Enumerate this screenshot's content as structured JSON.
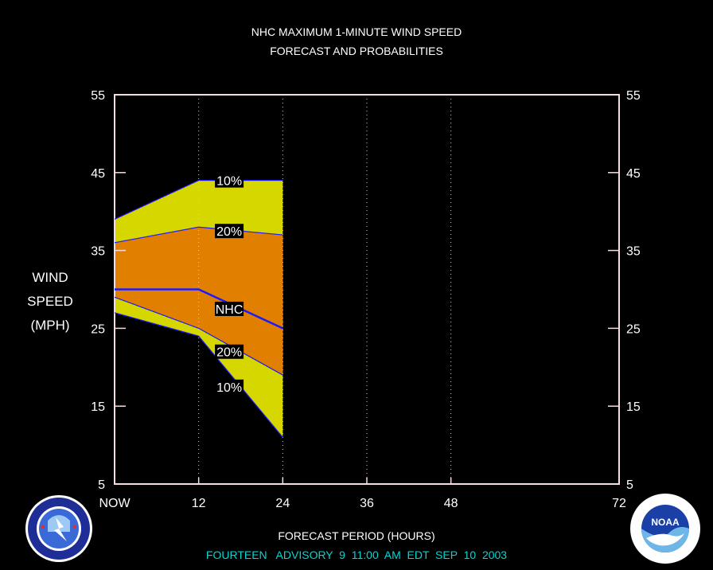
{
  "title_line1": "NHC MAXIMUM 1-MINUTE WIND SPEED",
  "title_line2": "FORECAST AND PROBABILITIES",
  "ylabel_lines": [
    "WIND",
    "SPEED",
    "(MPH)"
  ],
  "xlabel": "FORECAST PERIOD (HOURS)",
  "advisory": "FOURTEEN   ADVISORY  9  11:00  AM  EDT  SEP  10  2003",
  "colors": {
    "band_10": "#d7d700",
    "band_20": "#e17f00",
    "nhc_line": "#1a1aff",
    "frame": "#f5dede",
    "advisory": "#00d6d6"
  },
  "chart_data": {
    "type": "area",
    "title": "NHC MAXIMUM 1-MINUTE WIND SPEED FORECAST AND PROBABILITIES",
    "xlabel": "FORECAST PERIOD (HOURS)",
    "ylabel": "WIND SPEED (MPH)",
    "xlim": [
      0,
      72
    ],
    "ylim": [
      5,
      55
    ],
    "x_ticks": [
      {
        "x": 0,
        "label": "NOW"
      },
      {
        "x": 12,
        "label": "12"
      },
      {
        "x": 24,
        "label": "24"
      },
      {
        "x": 36,
        "label": "36"
      },
      {
        "x": 48,
        "label": "48"
      },
      {
        "x": 72,
        "label": "72"
      }
    ],
    "y_ticks": [
      5,
      15,
      25,
      35,
      45,
      55
    ],
    "grid": "dotted vertical at 12, 24, 36, 48",
    "x": [
      0,
      12,
      24
    ],
    "series": [
      {
        "name": "10%",
        "role": "upper_10",
        "values": [
          39,
          44,
          44
        ]
      },
      {
        "name": "20%",
        "role": "upper_20",
        "values": [
          36,
          38,
          37
        ]
      },
      {
        "name": "NHC",
        "role": "forecast",
        "values": [
          30,
          30,
          25
        ]
      },
      {
        "name": "20%",
        "role": "lower_20",
        "values": [
          29,
          25,
          19
        ]
      },
      {
        "name": "10%",
        "role": "lower_10",
        "values": [
          27,
          24,
          11
        ]
      }
    ],
    "labels": [
      {
        "text": "10%",
        "x": 15,
        "y": 44
      },
      {
        "text": "20%",
        "x": 15,
        "y": 37.5
      },
      {
        "text": "NHC",
        "x": 15,
        "y": 27.5
      },
      {
        "text": "20%",
        "x": 15,
        "y": 22
      },
      {
        "text": "10%",
        "x": 15,
        "y": 17.5
      }
    ]
  },
  "logos": {
    "left": "NWS",
    "right": "NOAA"
  }
}
